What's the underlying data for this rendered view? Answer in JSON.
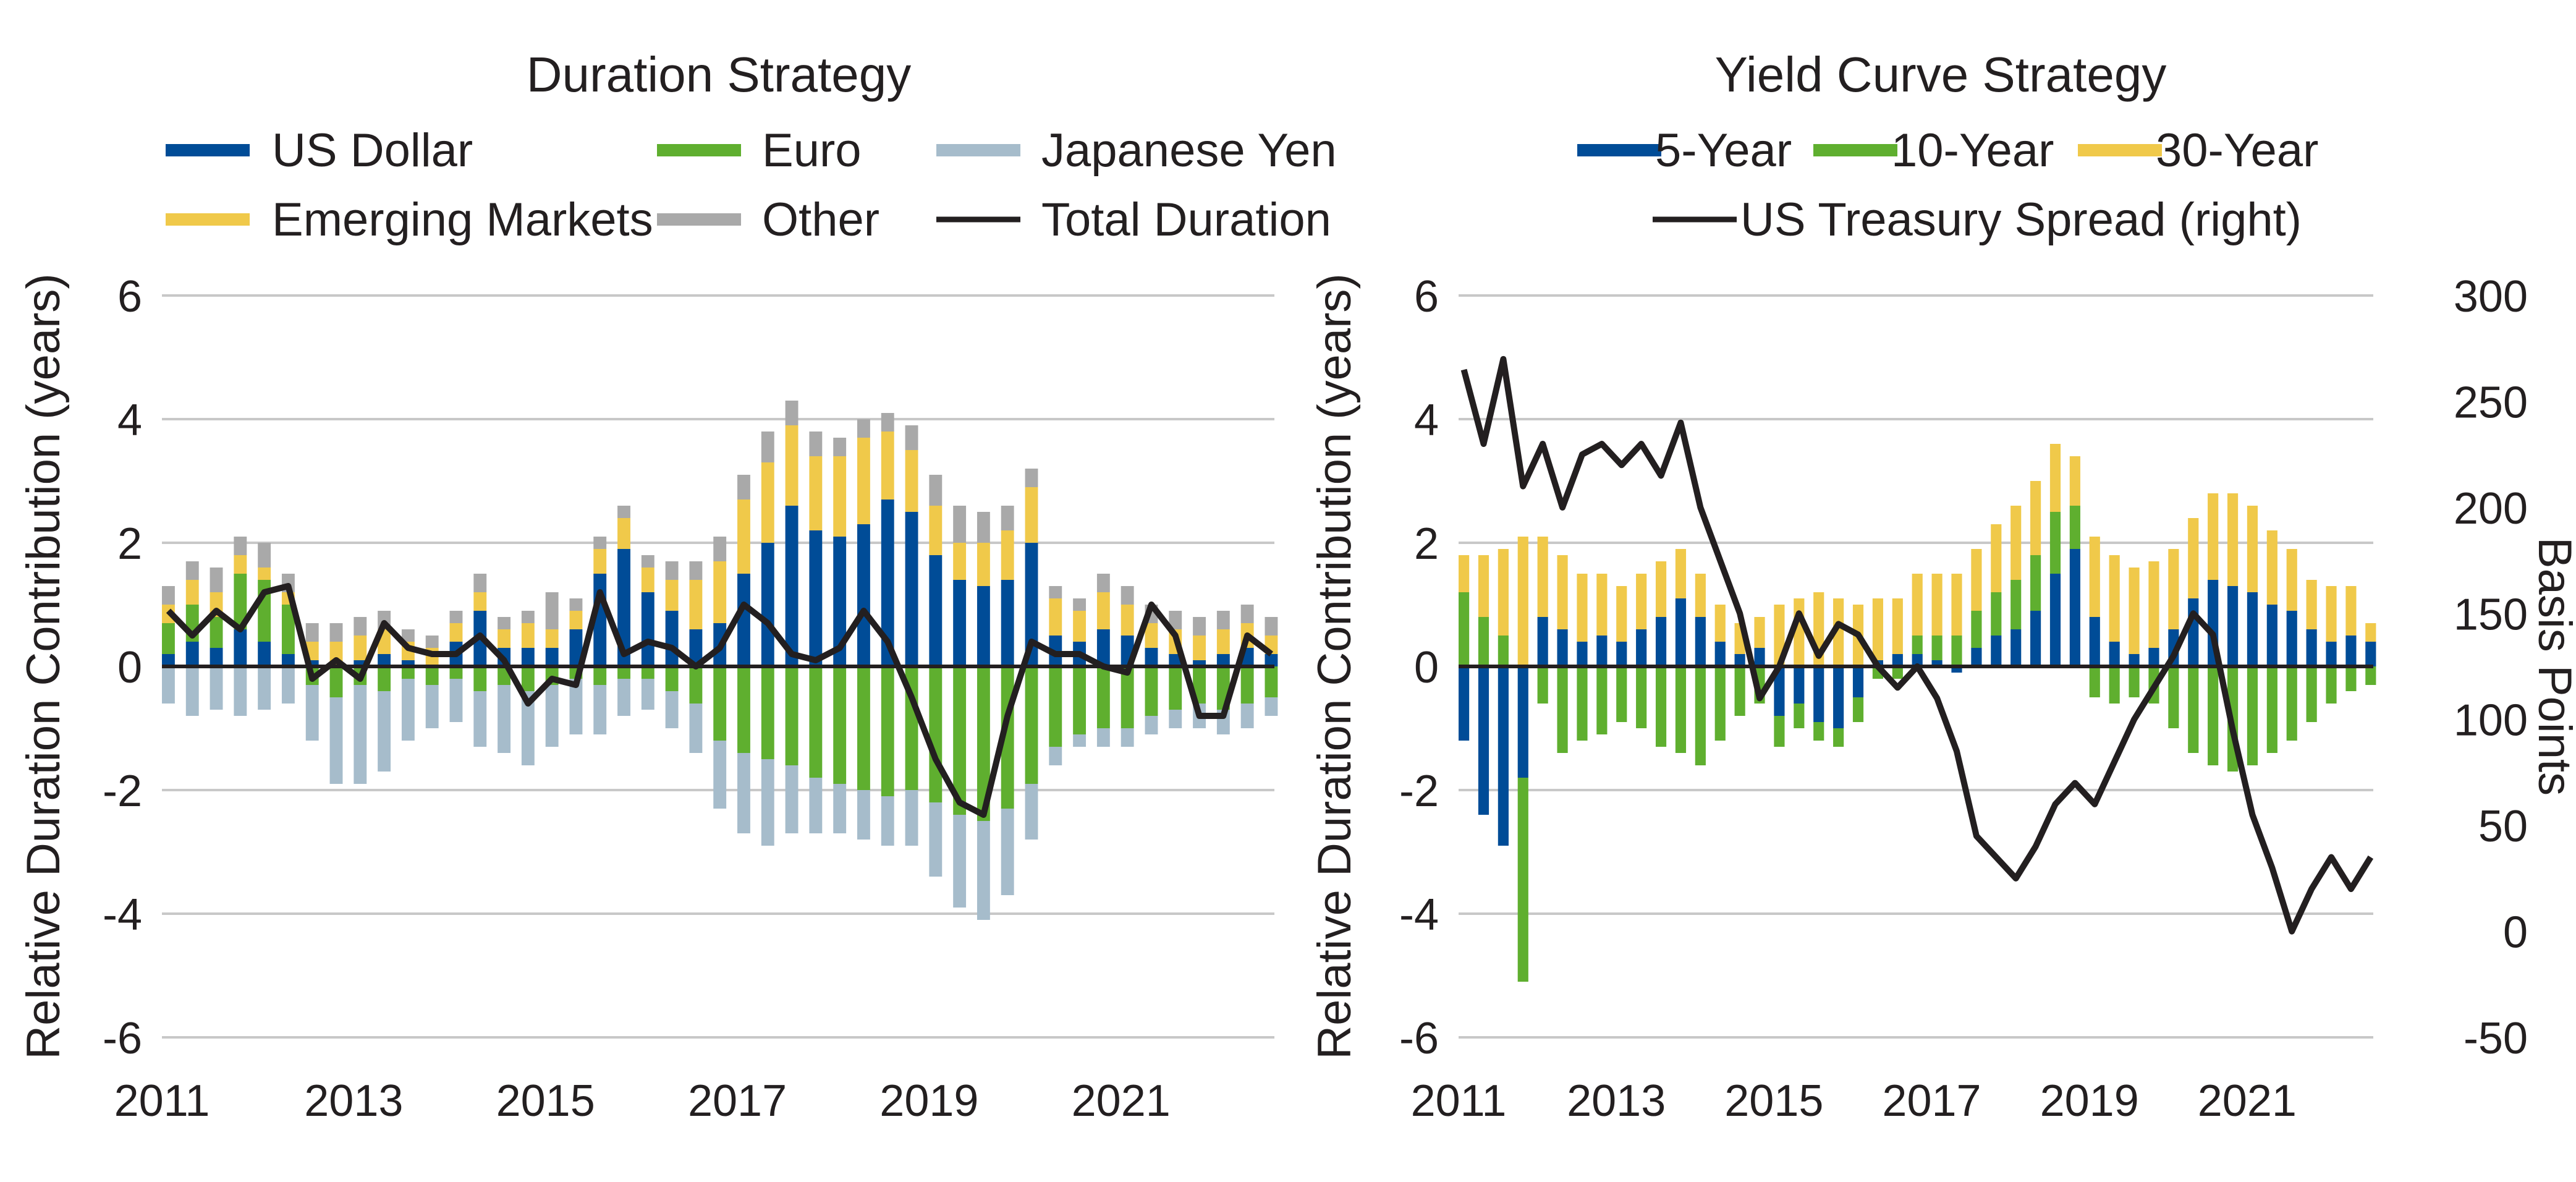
{
  "colors": {
    "us_dollar": "#004c97",
    "euro": "#5faf2f",
    "japanese_yen": "#a6bccb",
    "emerging_markets": "#f0c94a",
    "other": "#a9a9a9",
    "total_line": "#231f20",
    "grid": "#c8c8c8"
  },
  "chart_data": [
    {
      "type": "bar",
      "stacked": true,
      "title": "Duration Strategy",
      "xlabel": "",
      "ylabel": "Relative Duration Contribution (years)",
      "ylim": [
        -6,
        6
      ],
      "yticks": [
        "6",
        "4",
        "2",
        "0",
        "-2",
        "-4",
        "-6"
      ],
      "xlim": [
        2011,
        2022.6
      ],
      "xticks": [
        "2011",
        "2013",
        "2015",
        "2017",
        "2019",
        "2021"
      ],
      "grid": true,
      "legend_position": "top",
      "legend": [
        "US Dollar",
        "Euro",
        "Japanese Yen",
        "Emerging Markets",
        "Other",
        "Total Duration"
      ],
      "x": [
        2011.0,
        2011.25,
        2011.5,
        2011.75,
        2012.0,
        2012.25,
        2012.5,
        2012.75,
        2013.0,
        2013.25,
        2013.5,
        2013.75,
        2014.0,
        2014.25,
        2014.5,
        2014.75,
        2015.0,
        2015.25,
        2015.5,
        2015.75,
        2016.0,
        2016.25,
        2016.5,
        2016.75,
        2017.0,
        2017.25,
        2017.5,
        2017.75,
        2018.0,
        2018.25,
        2018.5,
        2018.75,
        2019.0,
        2019.25,
        2019.5,
        2019.75,
        2020.0,
        2020.25,
        2020.5,
        2020.75,
        2021.0,
        2021.25,
        2021.5,
        2021.75,
        2022.0,
        2022.25,
        2022.5
      ],
      "series": [
        {
          "name": "US Dollar",
          "type": "bar",
          "values": [
            0.2,
            0.4,
            0.3,
            0.6,
            0.4,
            0.2,
            0.1,
            0.0,
            0.1,
            0.2,
            0.1,
            0.0,
            0.4,
            0.9,
            0.3,
            0.3,
            0.3,
            0.6,
            1.5,
            1.9,
            1.2,
            0.9,
            0.6,
            0.7,
            1.5,
            2.0,
            2.6,
            2.2,
            2.1,
            2.3,
            2.7,
            2.5,
            1.8,
            1.4,
            1.3,
            1.4,
            2.0,
            0.5,
            0.4,
            0.6,
            0.5,
            0.3,
            0.2,
            0.1,
            0.2,
            0.3,
            0.2
          ]
        },
        {
          "name": "Euro",
          "type": "bar",
          "values": [
            0.5,
            0.6,
            0.5,
            0.9,
            1.0,
            0.8,
            -0.3,
            -0.5,
            -0.3,
            -0.4,
            -0.2,
            -0.3,
            -0.2,
            -0.4,
            -0.3,
            -0.4,
            -0.3,
            -0.2,
            -0.3,
            -0.2,
            -0.2,
            -0.4,
            -0.6,
            -1.2,
            -1.4,
            -1.5,
            -1.6,
            -1.8,
            -1.9,
            -2.0,
            -2.1,
            -2.0,
            -2.2,
            -2.4,
            -2.5,
            -2.3,
            -1.9,
            -1.3,
            -1.1,
            -1.0,
            -1.0,
            -0.8,
            -0.7,
            -0.6,
            -0.7,
            -0.6,
            -0.5
          ]
        },
        {
          "name": "Japanese Yen",
          "type": "bar",
          "values": [
            -0.6,
            -0.8,
            -0.7,
            -0.8,
            -0.7,
            -0.6,
            -0.9,
            -1.4,
            -1.6,
            -1.3,
            -1.0,
            -0.7,
            -0.7,
            -0.9,
            -1.1,
            -1.2,
            -1.0,
            -0.9,
            -0.8,
            -0.6,
            -0.5,
            -0.6,
            -0.8,
            -1.1,
            -1.3,
            -1.4,
            -1.1,
            -0.9,
            -0.8,
            -0.8,
            -0.8,
            -0.9,
            -1.2,
            -1.5,
            -1.6,
            -1.4,
            -0.9,
            -0.3,
            -0.2,
            -0.3,
            -0.3,
            -0.3,
            -0.3,
            -0.4,
            -0.4,
            -0.4,
            -0.3
          ]
        },
        {
          "name": "Emerging Markets",
          "type": "bar",
          "values": [
            0.3,
            0.4,
            0.4,
            0.3,
            0.2,
            0.2,
            0.3,
            0.4,
            0.4,
            0.4,
            0.3,
            0.3,
            0.3,
            0.3,
            0.3,
            0.4,
            0.3,
            0.3,
            0.4,
            0.5,
            0.4,
            0.5,
            0.8,
            1.0,
            1.2,
            1.3,
            1.3,
            1.2,
            1.3,
            1.4,
            1.1,
            1.0,
            0.8,
            0.6,
            0.7,
            0.8,
            0.9,
            0.6,
            0.5,
            0.6,
            0.5,
            0.4,
            0.4,
            0.4,
            0.4,
            0.4,
            0.3
          ]
        },
        {
          "name": "Other",
          "type": "bar",
          "values": [
            0.3,
            0.3,
            0.4,
            0.3,
            0.4,
            0.3,
            0.3,
            0.3,
            0.3,
            0.3,
            0.2,
            0.2,
            0.2,
            0.3,
            0.2,
            0.2,
            0.6,
            0.2,
            0.2,
            0.2,
            0.2,
            0.3,
            0.3,
            0.4,
            0.4,
            0.5,
            0.4,
            0.4,
            0.3,
            0.3,
            0.3,
            0.4,
            0.5,
            0.6,
            0.5,
            0.4,
            0.3,
            0.2,
            0.2,
            0.3,
            0.3,
            0.3,
            0.3,
            0.3,
            0.3,
            0.3,
            0.3
          ]
        },
        {
          "name": "Total Duration",
          "type": "line",
          "values": [
            0.9,
            0.5,
            0.9,
            0.6,
            1.2,
            1.3,
            -0.2,
            0.1,
            -0.2,
            0.7,
            0.3,
            0.2,
            0.2,
            0.5,
            0.1,
            -0.6,
            -0.2,
            -0.3,
            1.2,
            0.2,
            0.4,
            0.3,
            0.0,
            0.3,
            1.0,
            0.7,
            0.2,
            0.1,
            0.3,
            0.9,
            0.4,
            -0.5,
            -1.5,
            -2.2,
            -2.4,
            -0.8,
            0.4,
            0.2,
            0.2,
            0.0,
            -0.1,
            1.0,
            0.5,
            -0.8,
            -0.8,
            0.5,
            0.2
          ]
        }
      ]
    },
    {
      "type": "bar",
      "stacked": true,
      "title": "Yield Curve Strategy",
      "xlabel": "",
      "ylabel": "Relative Duration Contribution (years)",
      "ylim": [
        -6,
        6
      ],
      "yticks": [
        "6",
        "4",
        "2",
        "0",
        "-2",
        "-4",
        "-6"
      ],
      "y2label": "Basis Points",
      "y2lim": [
        -50,
        300
      ],
      "y2ticks": [
        "300",
        "250",
        "200",
        "150",
        "100",
        "50",
        "0",
        "-50"
      ],
      "xlim": [
        2011,
        2022.6
      ],
      "xticks": [
        "2011",
        "2013",
        "2015",
        "2017",
        "2019",
        "2021"
      ],
      "grid": true,
      "legend_position": "top",
      "legend": [
        "5-Year",
        "10-Year",
        "30-Year",
        "US Treasury Spread (right)"
      ],
      "x": [
        2011.0,
        2011.25,
        2011.5,
        2011.75,
        2012.0,
        2012.25,
        2012.5,
        2012.75,
        2013.0,
        2013.25,
        2013.5,
        2013.75,
        2014.0,
        2014.25,
        2014.5,
        2014.75,
        2015.0,
        2015.25,
        2015.5,
        2015.75,
        2016.0,
        2016.25,
        2016.5,
        2016.75,
        2017.0,
        2017.25,
        2017.5,
        2017.75,
        2018.0,
        2018.25,
        2018.5,
        2018.75,
        2019.0,
        2019.25,
        2019.5,
        2019.75,
        2020.0,
        2020.25,
        2020.5,
        2020.75,
        2021.0,
        2021.25,
        2021.5,
        2021.75,
        2022.0,
        2022.25,
        2022.5
      ],
      "series": [
        {
          "name": "5-Year",
          "type": "bar",
          "values": [
            -1.2,
            -2.4,
            -2.9,
            -1.8,
            0.8,
            0.6,
            0.4,
            0.5,
            0.4,
            0.6,
            0.8,
            1.1,
            0.8,
            0.4,
            0.2,
            0.3,
            -0.8,
            -0.6,
            -0.9,
            -1.0,
            -0.5,
            0.1,
            0.2,
            0.2,
            0.1,
            -0.1,
            0.3,
            0.5,
            0.6,
            0.9,
            1.5,
            1.9,
            0.8,
            0.4,
            0.2,
            0.3,
            0.6,
            1.1,
            1.4,
            1.3,
            1.2,
            1.0,
            0.9,
            0.6,
            0.4,
            0.5,
            0.4
          ]
        },
        {
          "name": "10-Year",
          "type": "bar",
          "values": [
            1.2,
            0.8,
            0.5,
            -3.3,
            -0.6,
            -1.4,
            -1.2,
            -1.1,
            -0.9,
            -1.0,
            -1.3,
            -1.4,
            -1.6,
            -1.2,
            -0.8,
            -0.6,
            -0.5,
            -0.4,
            -0.3,
            -0.3,
            -0.4,
            -0.2,
            -0.2,
            0.3,
            0.4,
            0.5,
            0.6,
            0.7,
            0.8,
            0.9,
            1.0,
            0.7,
            -0.5,
            -0.6,
            -0.5,
            -0.6,
            -1.0,
            -1.4,
            -1.6,
            -1.7,
            -1.6,
            -1.4,
            -1.2,
            -0.9,
            -0.6,
            -0.4,
            -0.3
          ]
        },
        {
          "name": "30-Year",
          "type": "bar",
          "values": [
            0.6,
            1.0,
            1.4,
            2.1,
            1.3,
            1.2,
            1.1,
            1.0,
            0.9,
            0.9,
            0.9,
            0.8,
            0.7,
            0.6,
            0.5,
            0.5,
            1.0,
            1.1,
            1.2,
            1.1,
            1.0,
            1.0,
            0.9,
            1.0,
            1.0,
            1.0,
            1.0,
            1.1,
            1.2,
            1.2,
            1.1,
            0.8,
            1.3,
            1.4,
            1.4,
            1.4,
            1.3,
            1.3,
            1.4,
            1.5,
            1.4,
            1.2,
            1.0,
            0.8,
            0.9,
            0.8,
            0.3
          ]
        },
        {
          "name": "US Treasury Spread (right)",
          "type": "line",
          "axis": "right",
          "values": [
            265,
            230,
            270,
            210,
            230,
            200,
            225,
            230,
            220,
            230,
            215,
            240,
            200,
            175,
            150,
            110,
            125,
            150,
            130,
            145,
            140,
            125,
            115,
            125,
            110,
            85,
            45,
            35,
            25,
            40,
            60,
            70,
            60,
            80,
            100,
            115,
            130,
            150,
            140,
            95,
            55,
            30,
            0,
            20,
            35,
            20,
            35
          ]
        }
      ]
    }
  ]
}
